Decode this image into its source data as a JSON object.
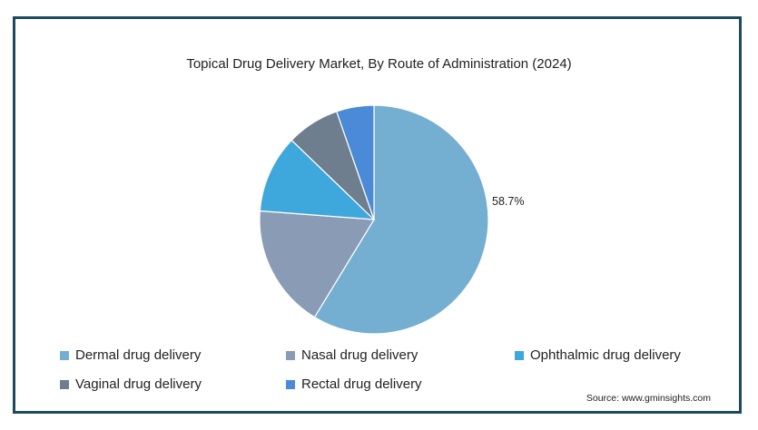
{
  "chart_data": {
    "type": "pie",
    "title": "Topical Drug Delivery Market, By Route of Administration (2024)",
    "slices": [
      {
        "name": "Dermal drug delivery",
        "value": 58.7,
        "color": "#74afd1",
        "label": "58.7%"
      },
      {
        "name": "Nasal drug delivery",
        "value": 17.5,
        "color": "#8a9bb5",
        "label": ""
      },
      {
        "name": "Ophthalmic drug delivery",
        "value": 11.0,
        "color": "#3ea8dc",
        "label": ""
      },
      {
        "name": "Vaginal drug delivery",
        "value": 7.5,
        "color": "#6e7e8e",
        "label": ""
      },
      {
        "name": "Rectal drug delivery",
        "value": 5.3,
        "color": "#4a8ad6",
        "label": ""
      }
    ],
    "legend_placement": "bottom"
  },
  "source": "Source: www.gminsights.com"
}
